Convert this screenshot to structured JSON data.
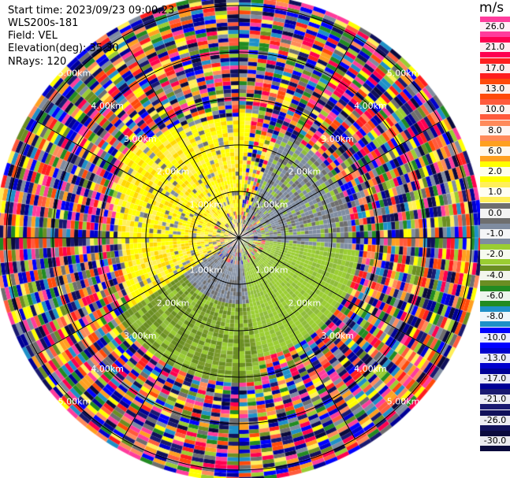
{
  "header": {
    "start_time": "Start time: 2023/09/23 09:00:23",
    "site": "WLS200s-181",
    "field": "Field: VEL",
    "elevation": "Elevation(deg): 35.30",
    "nrays": "NRays: 120"
  },
  "colorbar": {
    "unit": "m/s",
    "levels": [
      {
        "label": "26.0",
        "color": "#ff3c9c"
      },
      {
        "label": "21.0",
        "color": "#ff0050"
      },
      {
        "label": "17.0",
        "color": "#ff1e1e"
      },
      {
        "label": "13.0",
        "color": "#ff4a0a"
      },
      {
        "label": "10.0",
        "color": "#ff5a3c"
      },
      {
        "label": "8.0",
        "color": "#ff8a5a"
      },
      {
        "label": "6.0",
        "color": "#ffa020"
      },
      {
        "label": "2.0",
        "color": "#ffff00"
      },
      {
        "label": "1.0",
        "color": "#ffef5a"
      },
      {
        "label": "0.0",
        "color": "#6e6e6e"
      },
      {
        "label": "-1.0",
        "color": "#7f8ca0"
      },
      {
        "label": "-2.0",
        "color": "#9acd32"
      },
      {
        "label": "-4.0",
        "color": "#6b8e23"
      },
      {
        "label": "-6.0",
        "color": "#228b22"
      },
      {
        "label": "-8.0",
        "color": "#1e90c8"
      },
      {
        "label": "-10.0",
        "color": "#0000ff"
      },
      {
        "label": "-13.0",
        "color": "#0000cd"
      },
      {
        "label": "-17.0",
        "color": "#000096"
      },
      {
        "label": "-21.0",
        "color": "#191970"
      },
      {
        "label": "-26.0",
        "color": "#10105a"
      },
      {
        "label": "-30.0",
        "color": "#0a0a3c"
      }
    ]
  },
  "range_rings": [
    {
      "label": "1.00km"
    },
    {
      "label": "2.00km"
    },
    {
      "label": "3.00km"
    },
    {
      "label": "4.00km"
    },
    {
      "label": "5.00km"
    }
  ]
}
